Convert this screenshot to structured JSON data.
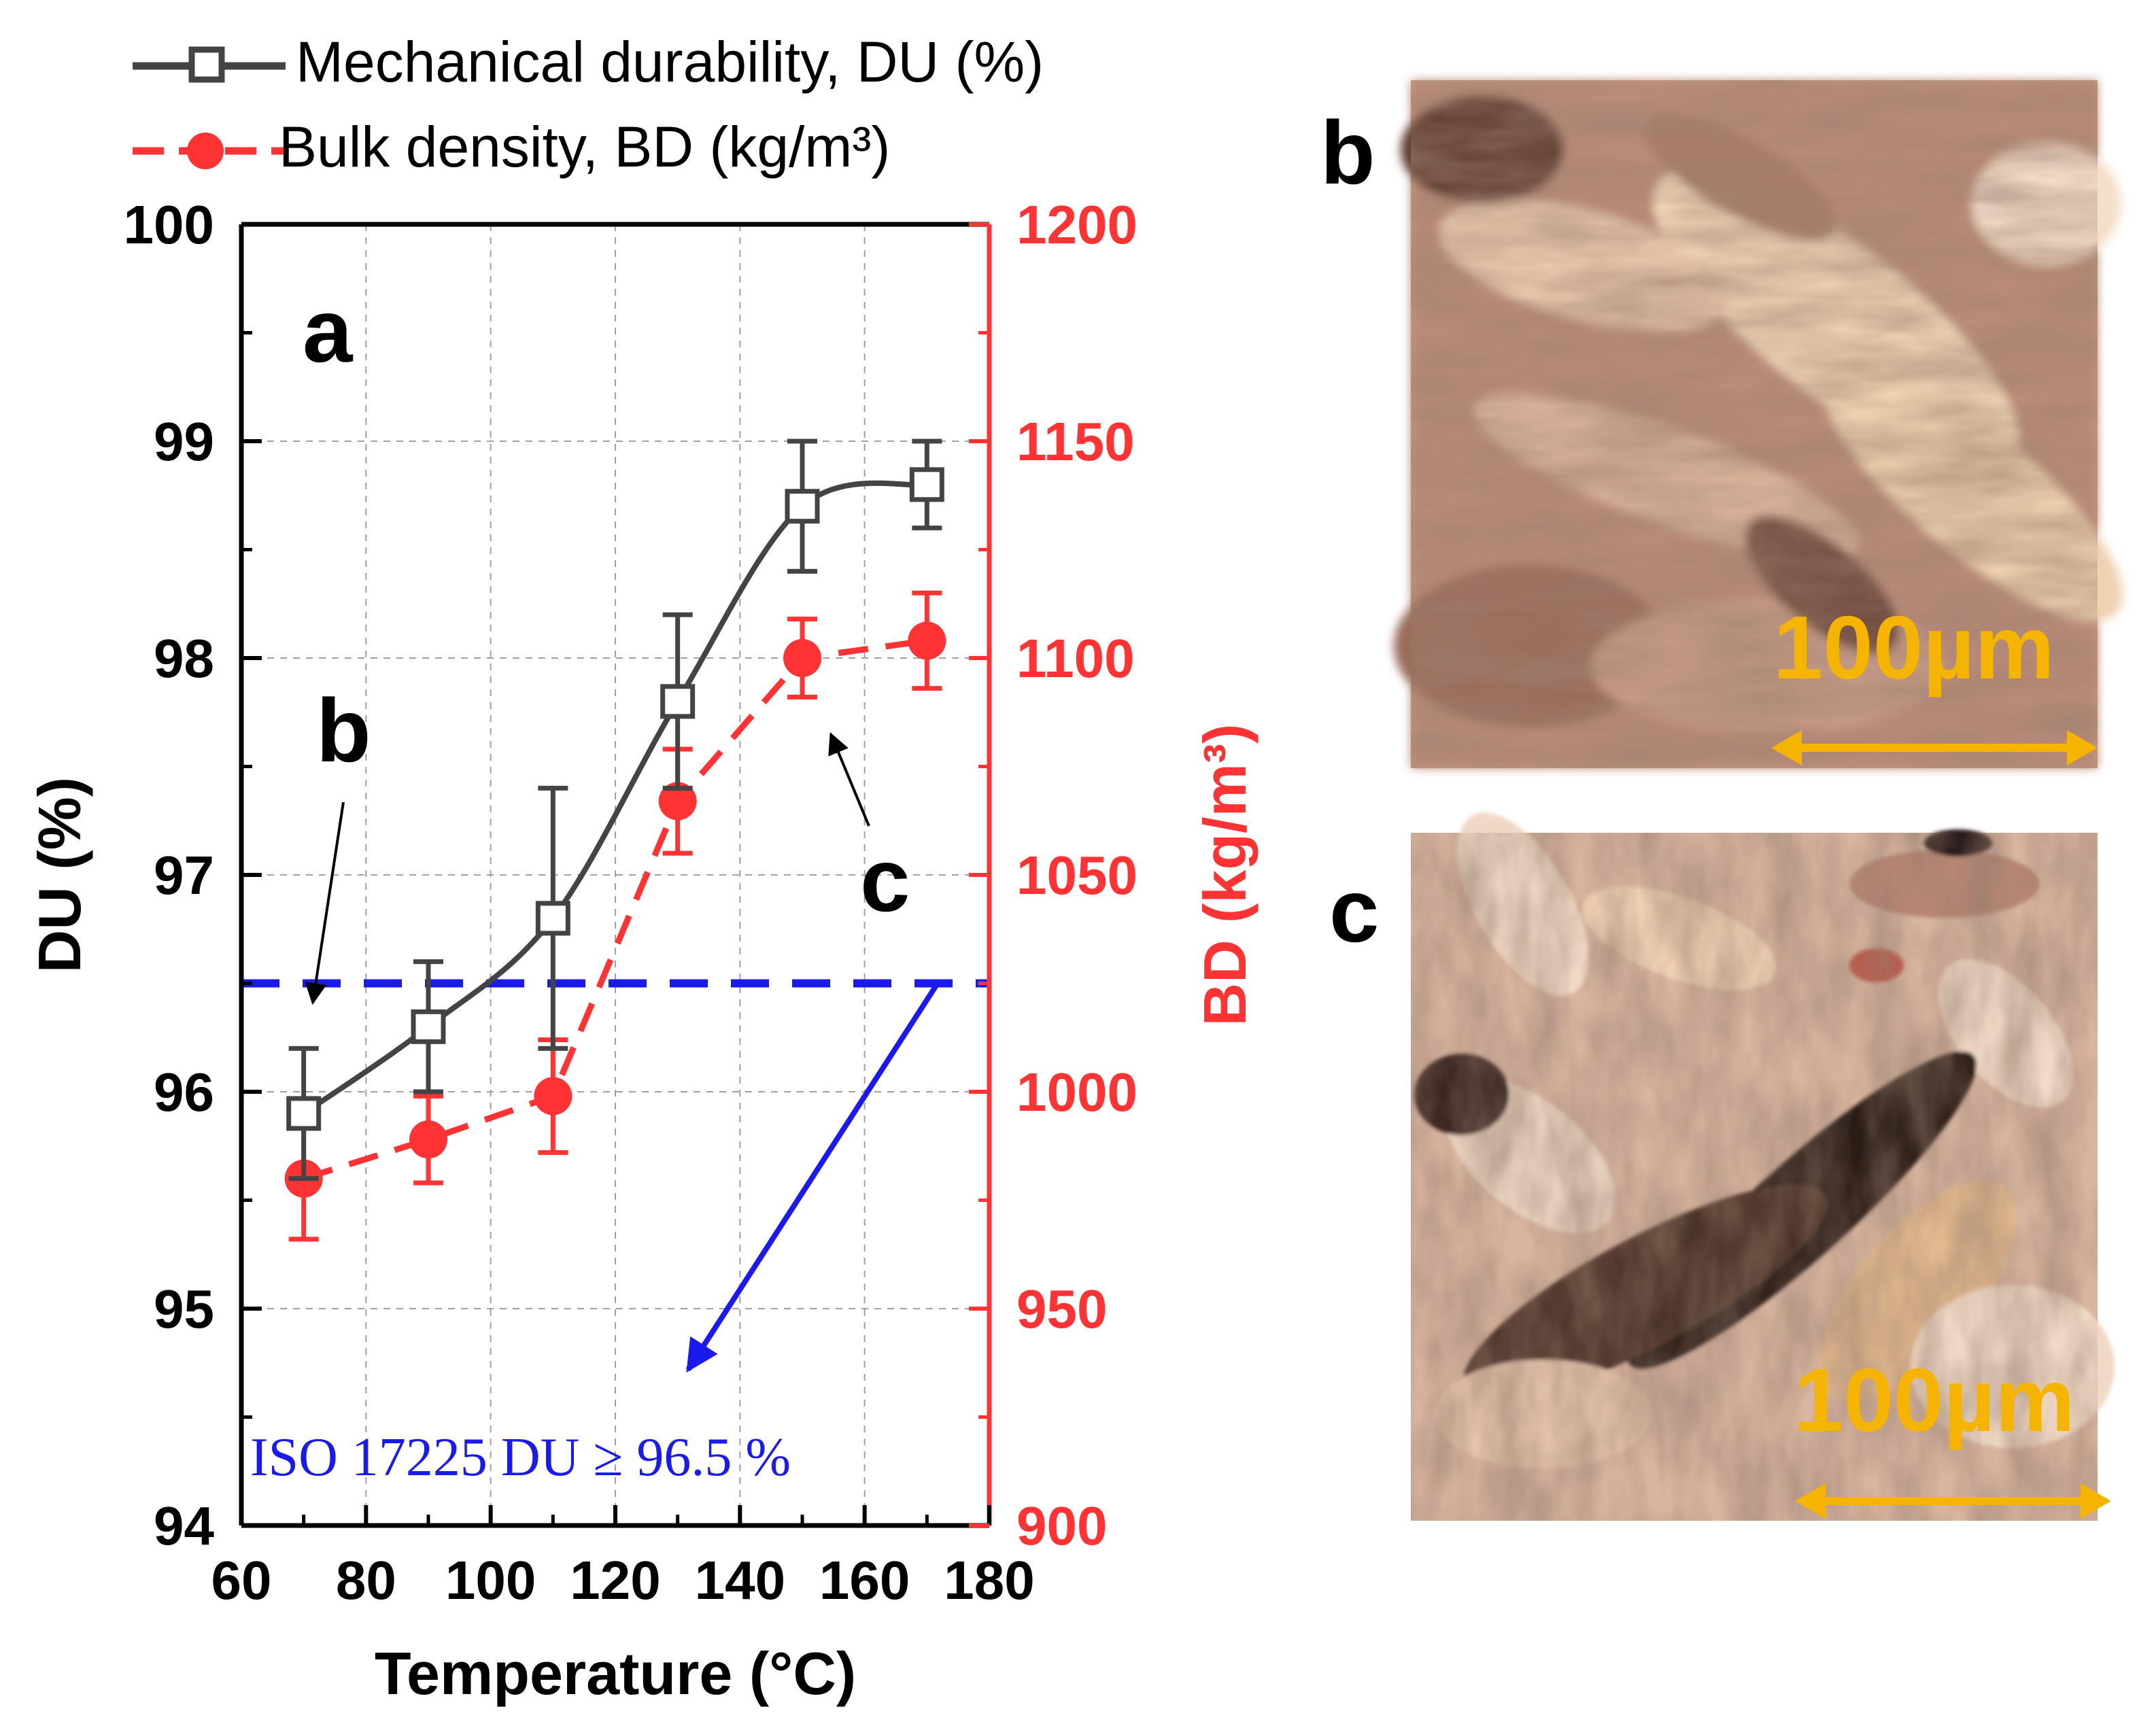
{
  "chart_data": {
    "type": "line",
    "panel_label": "a",
    "xlabel": "Temperature (°C)",
    "ylabel_left": "DU (%)",
    "ylabel_right": "BD (kg/m³)",
    "xlim": [
      60,
      180
    ],
    "ylim_left": [
      94,
      100
    ],
    "ylim_right": [
      900,
      1200
    ],
    "x_ticks": [
      60,
      80,
      100,
      120,
      140,
      160,
      180
    ],
    "y_left_ticks": [
      94,
      95,
      96,
      97,
      98,
      99,
      100
    ],
    "y_right_ticks": [
      900,
      950,
      1000,
      1050,
      1100,
      1150,
      1200
    ],
    "grid": true,
    "legend_position": "top-left, above plot",
    "series": [
      {
        "name": "Mechanical durability, DU (%)",
        "axis": "left",
        "color": "#444444",
        "marker": "open-square",
        "line": "solid-smooth-fit",
        "x": [
          70,
          90,
          110,
          130,
          150,
          170
        ],
        "values": [
          95.9,
          96.3,
          96.8,
          97.8,
          98.7,
          98.8
        ],
        "error": [
          0.3,
          0.3,
          0.6,
          0.4,
          0.3,
          0.2
        ]
      },
      {
        "name": "Bulk density, BD (kg/m³)",
        "axis": "right",
        "color": "#ff3333",
        "marker": "filled-circle",
        "line": "dashed",
        "x": [
          70,
          90,
          110,
          130,
          150,
          170
        ],
        "values": [
          980,
          989,
          999,
          1067,
          1100,
          1104
        ],
        "error": [
          14,
          10,
          13,
          12,
          9,
          11
        ]
      }
    ],
    "reference_line": {
      "axis": "left",
      "value": 96.5,
      "color": "#1a1aee",
      "style": "dashed",
      "label": "ISO 17225 DU ≥ 96.5 %"
    },
    "annotations": [
      {
        "text": "b",
        "points_to_x": 70,
        "points_to_axis": "left",
        "points_to_value": 96.5
      },
      {
        "text": "c",
        "points_to_x": 150,
        "points_to_axis": "right",
        "points_to_value": 1085
      }
    ]
  },
  "micrographs": [
    {
      "label": "b",
      "scale_bar": "100µm"
    },
    {
      "label": "c",
      "scale_bar": "100µm"
    }
  ],
  "colors": {
    "du": "#444444",
    "bd": "#ff3333",
    "iso": "#1a1aee",
    "scale": "#f5b400",
    "grid": "#a0a0a0"
  }
}
